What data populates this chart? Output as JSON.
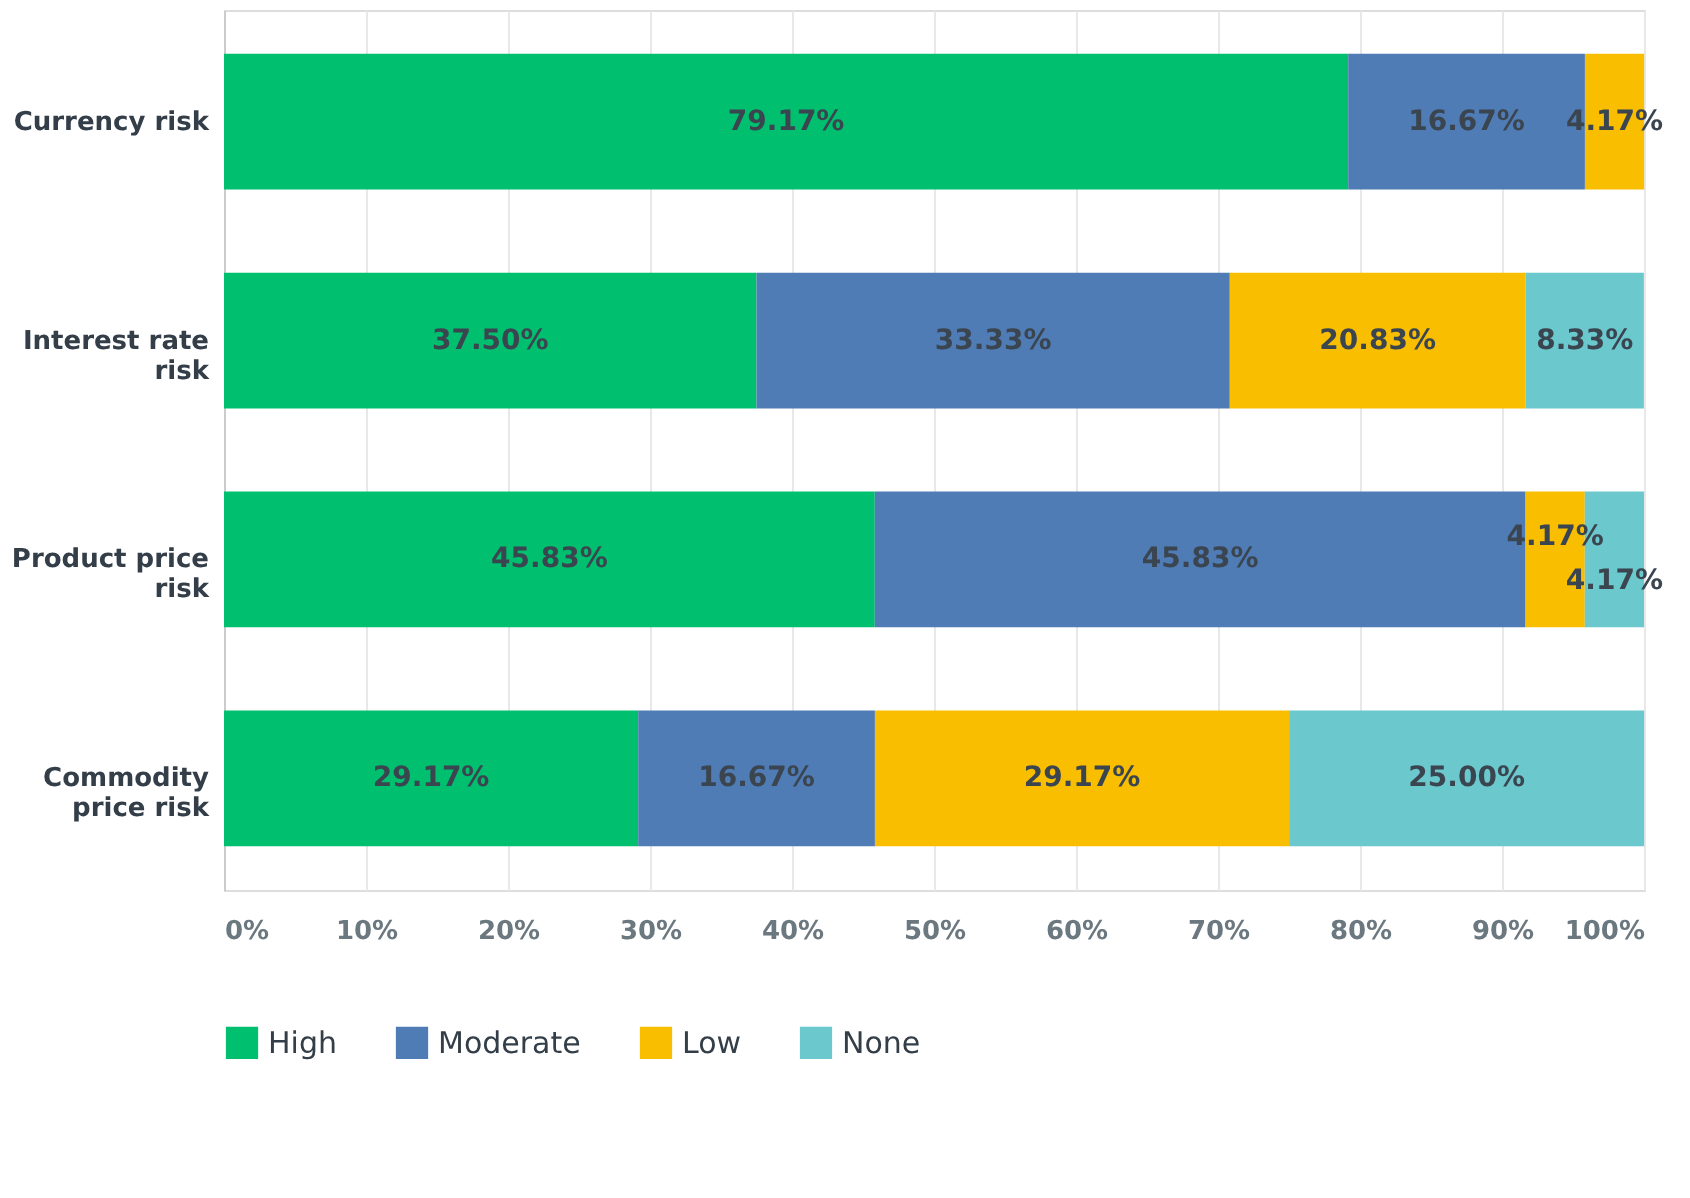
{
  "chart_data": {
    "type": "bar",
    "orientation": "horizontal",
    "stacked": true,
    "categories": [
      "Currency risk",
      "Interest rate risk",
      "Product price risk",
      "Commodity price risk"
    ],
    "series": [
      {
        "name": "High",
        "color": "#00bf6f",
        "values": [
          79.17,
          37.5,
          45.83,
          29.17
        ],
        "value_labels": [
          "79.17%",
          "37.50%",
          "45.83%",
          "29.17%"
        ]
      },
      {
        "name": "Moderate",
        "color": "#507cb6",
        "values": [
          16.67,
          33.33,
          45.83,
          16.67
        ],
        "value_labels": [
          "16.67%",
          "33.33%",
          "45.83%",
          "16.67%"
        ]
      },
      {
        "name": "Low",
        "color": "#f9be00",
        "values": [
          4.17,
          20.83,
          4.17,
          29.17
        ],
        "value_labels": [
          "4.17%",
          "20.83%",
          "4.17%",
          "29.17%"
        ]
      },
      {
        "name": "None",
        "color": "#6bc8cd",
        "values": [
          0,
          8.33,
          4.17,
          25.0
        ],
        "value_labels": [
          null,
          "8.33%",
          "4.17%",
          "25.00%"
        ]
      }
    ],
    "xlim": [
      0,
      100
    ],
    "xticks": [
      {
        "value": 0,
        "label": "0%"
      },
      {
        "value": 10,
        "label": "10%"
      },
      {
        "value": 20,
        "label": "20%"
      },
      {
        "value": 30,
        "label": "30%"
      },
      {
        "value": 40,
        "label": "40%"
      },
      {
        "value": 50,
        "label": "50%"
      },
      {
        "value": 60,
        "label": "60%"
      },
      {
        "value": 70,
        "label": "70%"
      },
      {
        "value": 80,
        "label": "80%"
      },
      {
        "value": 90,
        "label": "90%"
      },
      {
        "value": 100,
        "label": "100%"
      }
    ],
    "grid": "x",
    "legend": "bottom"
  }
}
